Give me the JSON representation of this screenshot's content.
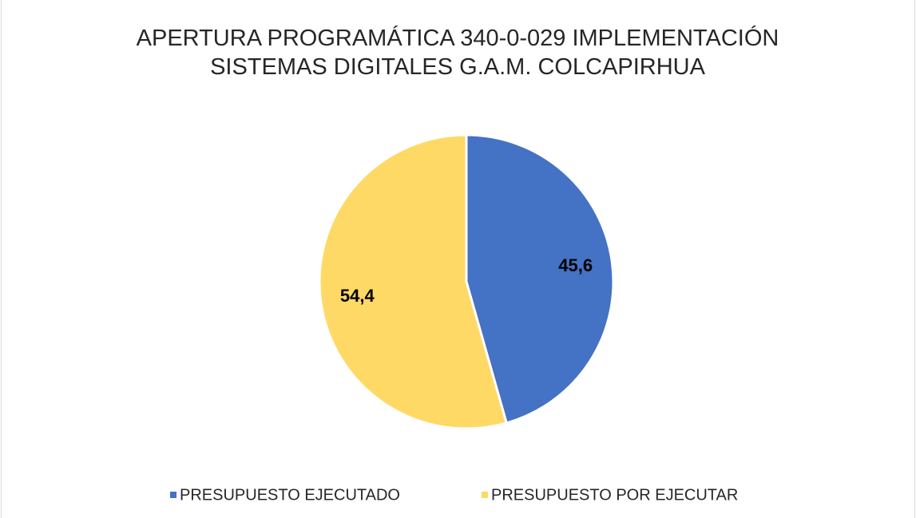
{
  "chart_data": {
    "type": "pie",
    "title": "APERTURA PROGRAMÁTICA 340-0-029 IMPLEMENTACIÓN SISTEMAS DIGITALES G.A.M. COLCAPIRHUA",
    "categories": [
      "PRESUPUESTO EJECUTADO",
      "PRESUPUESTO POR EJECUTAR"
    ],
    "values": [
      45.6,
      54.4
    ],
    "value_labels": [
      "45,6",
      "54,4"
    ],
    "colors": [
      "#4472c4",
      "#ffd966"
    ],
    "legend": "bottom"
  }
}
